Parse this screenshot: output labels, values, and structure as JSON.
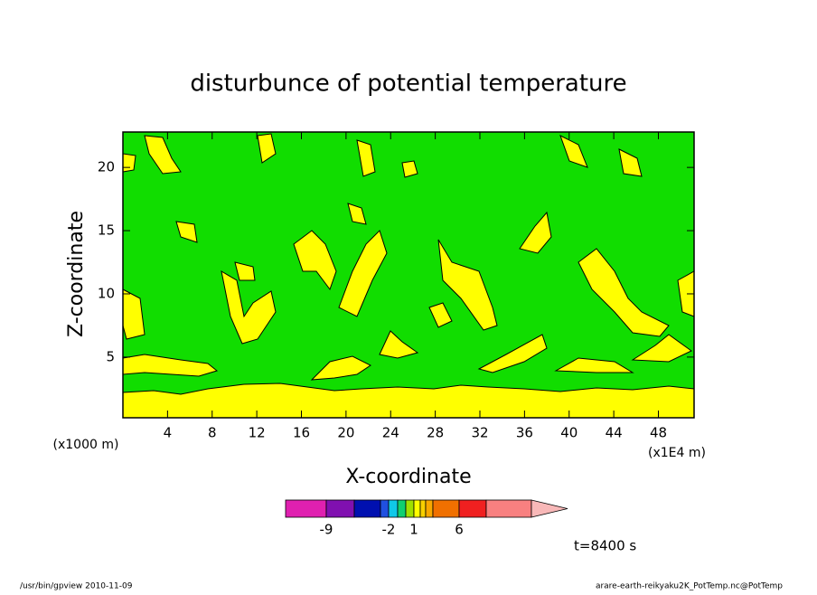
{
  "chart_data": {
    "type": "contour",
    "title": "disturbunce of potential temperature",
    "x_label": "X-coordinate",
    "y_label": "Z-coordinate",
    "x_unit": "(x1E4 m)",
    "y_unit": "(x1000 m)",
    "xlim": [
      0,
      51.2
    ],
    "ylim": [
      0.2,
      22.8
    ],
    "xticks": [
      4,
      8,
      12,
      16,
      20,
      24,
      28,
      32,
      36,
      40,
      44,
      48
    ],
    "yticks": [
      5,
      10,
      15,
      20
    ],
    "field_colors": [
      "#11dd00",
      "#ffff00"
    ],
    "colorbar": {
      "colors": [
        "#e020b0",
        "#8010b0",
        "#0010b0",
        "#2050e0",
        "#10c8e8",
        "#10d070",
        "#a0e000",
        "#ffff00",
        "#f8d000",
        "#f8a800",
        "#f07000",
        "#f02020",
        "#f88080",
        "#f8b8b8"
      ],
      "levels": [
        -12,
        -9,
        -6,
        -3,
        -2,
        -1,
        0,
        1,
        2,
        3,
        4,
        6,
        9,
        12
      ],
      "ticks": [
        -9,
        -2,
        1,
        6
      ]
    },
    "annotation": "t=8400 s",
    "footer_left": "/usr/bin/gpview  2010-11-09",
    "footer_right": "arare-earth-reikyaku2K_PotTemp.nc@PotTemp"
  }
}
